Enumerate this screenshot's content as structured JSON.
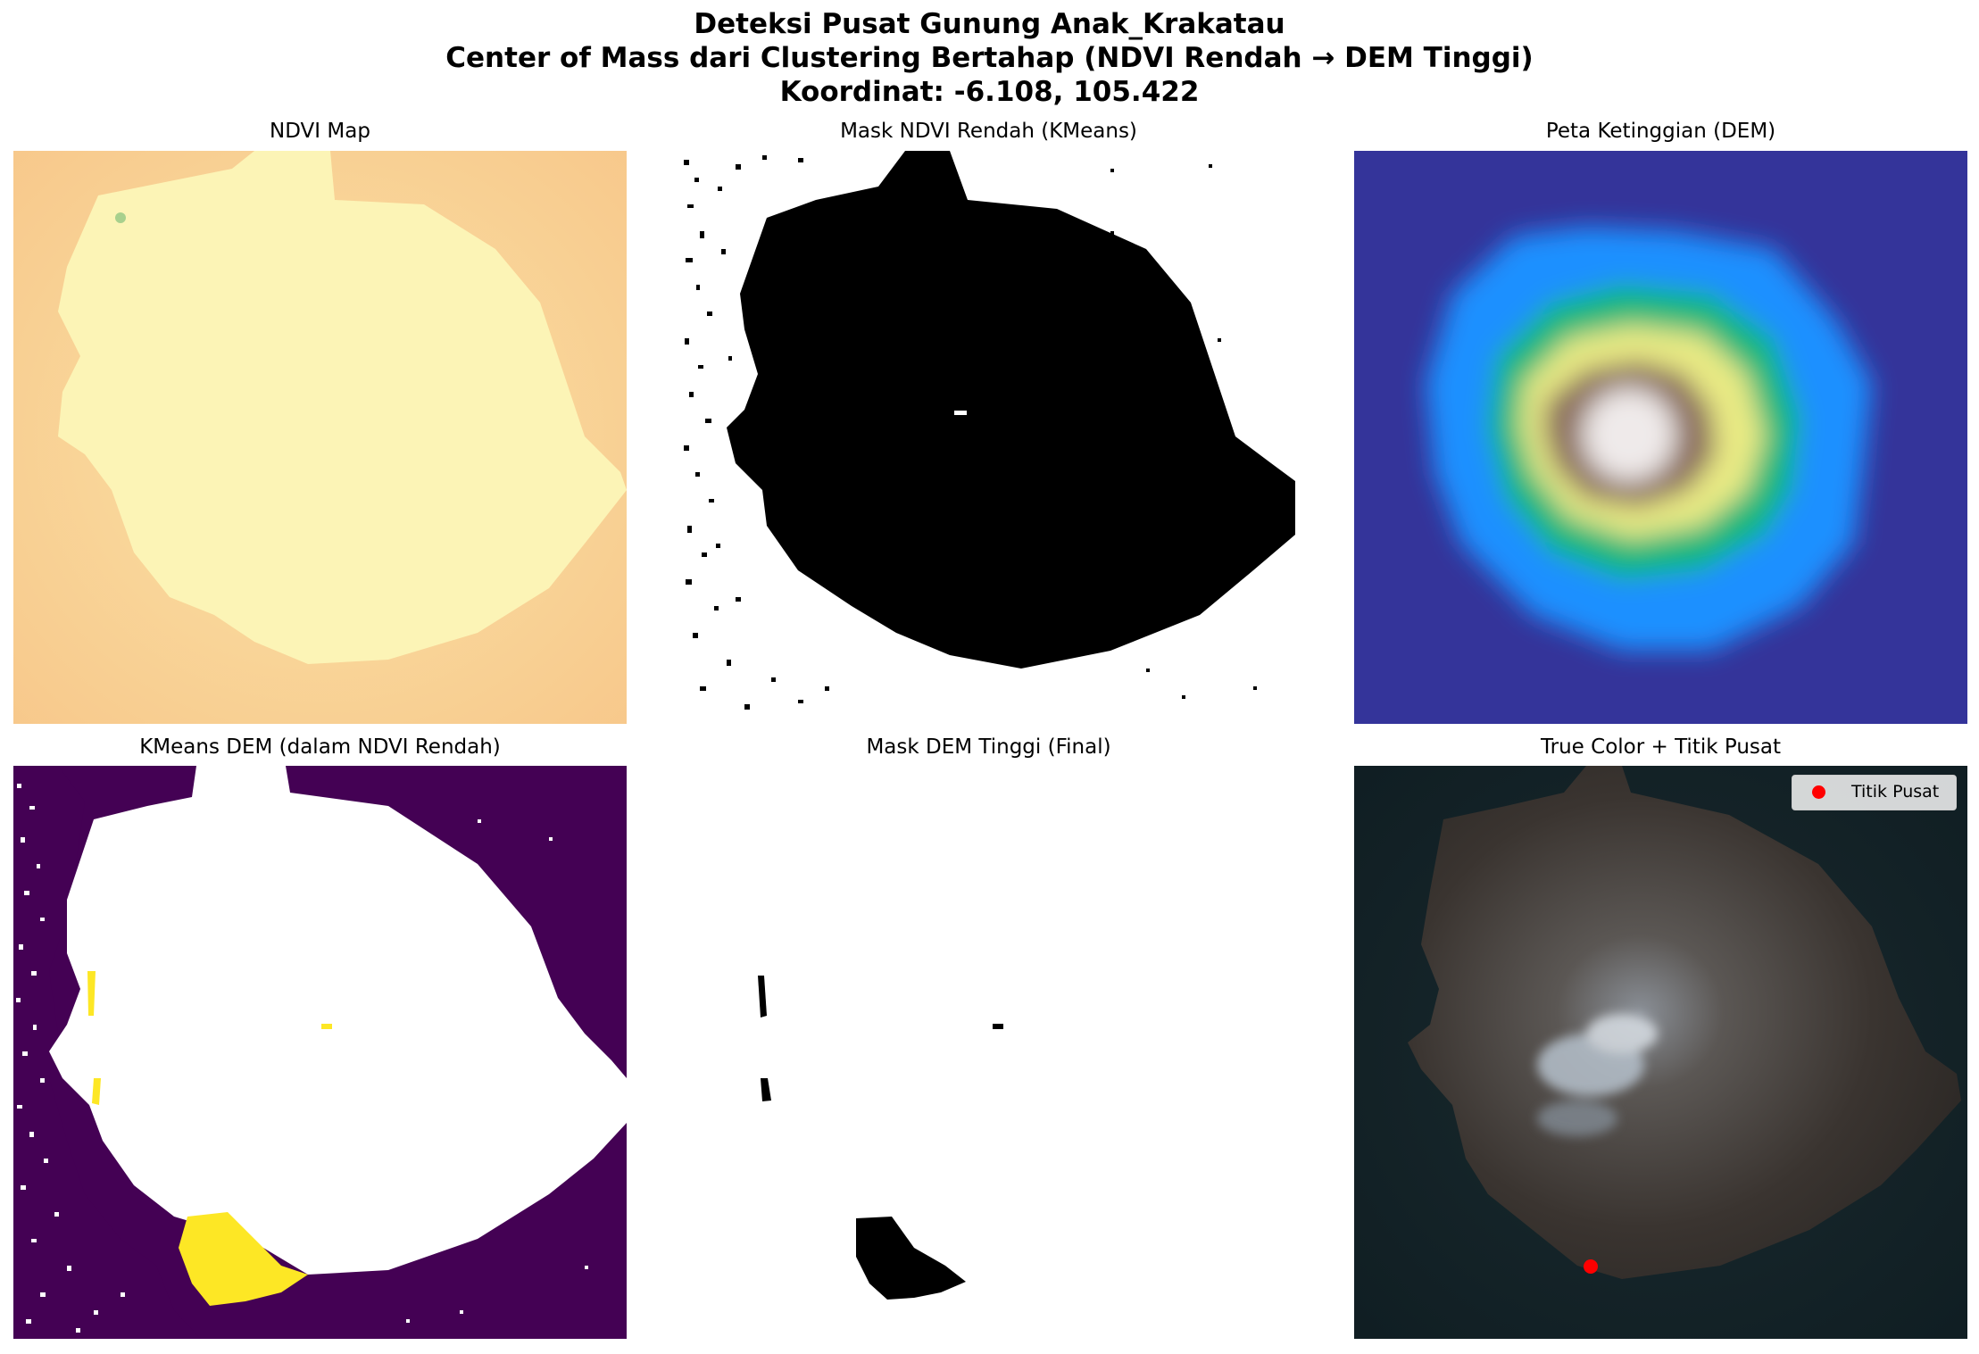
{
  "figure": {
    "title_line1": "Deteksi Pusat Gunung Anak_Krakatau",
    "title_line2": "Center of Mass dari Clustering Bertahap (NDVI Rendah → DEM Tinggi)",
    "title_line3": "Koordinat: -6.108, 105.422"
  },
  "panels": [
    {
      "title": "NDVI Map",
      "colormap": "RdYlGn"
    },
    {
      "title": "Mask NDVI Rendah (KMeans)",
      "colormap": "gray"
    },
    {
      "title": "Peta Ketinggian (DEM)",
      "colormap": "terrain"
    },
    {
      "title": "KMeans DEM (dalam NDVI Rendah)",
      "colormap": "viridis"
    },
    {
      "title": "Mask DEM Tinggi (Final)",
      "colormap": "gray"
    },
    {
      "title": "True Color + Titik Pusat",
      "colormap": "rgb"
    }
  ],
  "legend": {
    "label": "Titik Pusat",
    "marker_color": "#ff0000"
  },
  "colors": {
    "ndvi_land": "#fcf3b0",
    "ndvi_sea": "#f8cf8e",
    "dem_sea": "#34349a",
    "viridis_low": "#440154",
    "viridis_high": "#fde725",
    "true_color_sea": "#16272b",
    "true_color_land": "#3b3530",
    "center_point": "#ff0000"
  }
}
